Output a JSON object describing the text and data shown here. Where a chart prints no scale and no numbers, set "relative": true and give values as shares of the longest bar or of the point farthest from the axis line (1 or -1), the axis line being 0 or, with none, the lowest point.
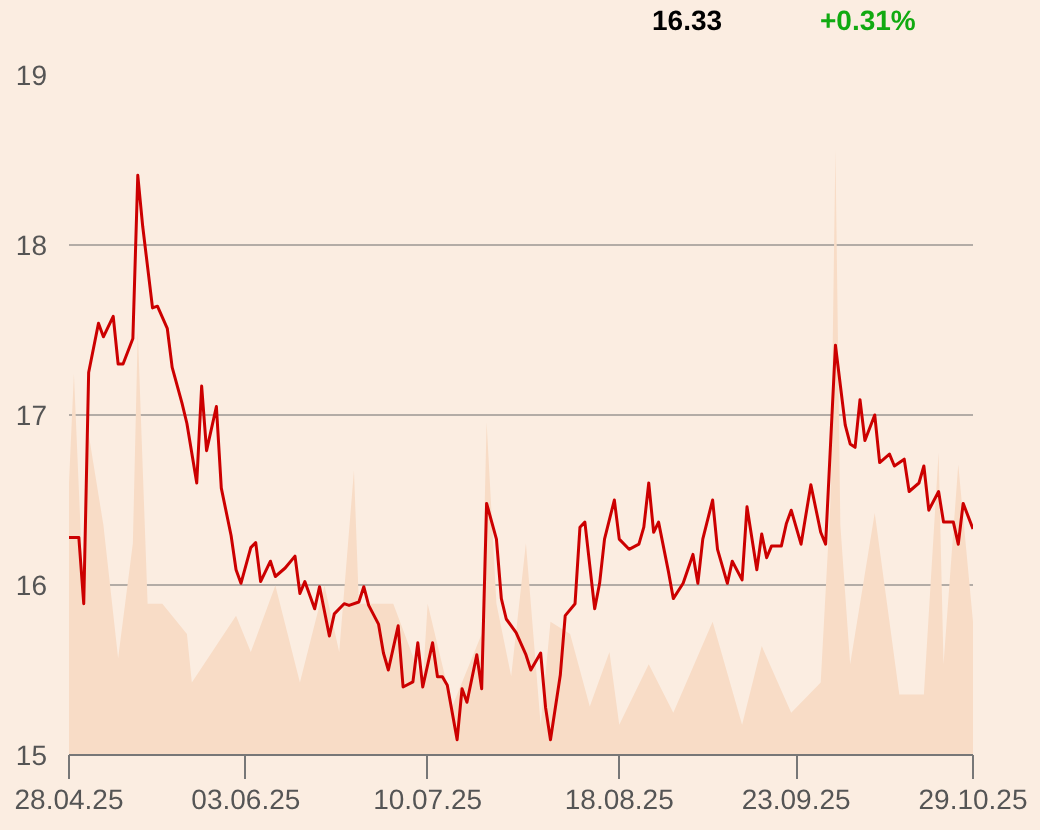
{
  "chart_data": [
    {
      "type": "line",
      "annotations": [
        "16.33",
        "+0.31%"
      ],
      "grid": "y",
      "marker": "none",
      "line_style": "solid",
      "xlim": [
        "2025-04-28",
        "2025-10-29"
      ],
      "xticks": [
        {
          "value": "2025-04-28",
          "label": "28.04.25"
        },
        {
          "value": "2025-06-03",
          "label": "03.06.25"
        },
        {
          "value": "2025-07-10",
          "label": "10.07.25"
        },
        {
          "value": "2025-08-18",
          "label": "18.08.25"
        },
        {
          "value": "2025-09-23",
          "label": "23.09.25"
        },
        {
          "value": "2025-10-29",
          "label": "29.10.25"
        }
      ],
      "ylim": [
        15,
        19
      ],
      "yticks": [
        15,
        16,
        17,
        18,
        19
      ],
      "series": [
        {
          "color": "#cc0000",
          "x": [
            "2025-04-28",
            "2025-04-30",
            "2025-05-01",
            "2025-05-02",
            "2025-05-04",
            "2025-05-05",
            "2025-05-07",
            "2025-05-08",
            "2025-05-09",
            "2025-05-11",
            "2025-05-12",
            "2025-05-13",
            "2025-05-15",
            "2025-05-16",
            "2025-05-18",
            "2025-05-19",
            "2025-05-21",
            "2025-05-22",
            "2025-05-24",
            "2025-05-25",
            "2025-05-26",
            "2025-05-28",
            "2025-05-29",
            "2025-05-31",
            "2025-06-01",
            "2025-06-02",
            "2025-06-04",
            "2025-06-05",
            "2025-06-06",
            "2025-06-08",
            "2025-06-09",
            "2025-06-11",
            "2025-06-13",
            "2025-06-14",
            "2025-06-15",
            "2025-06-17",
            "2025-06-18",
            "2025-06-20",
            "2025-06-21",
            "2025-06-23",
            "2025-06-24",
            "2025-06-26",
            "2025-06-27",
            "2025-06-28",
            "2025-06-30",
            "2025-07-01",
            "2025-07-02",
            "2025-07-04",
            "2025-07-05",
            "2025-07-07",
            "2025-07-08",
            "2025-07-09",
            "2025-07-11",
            "2025-07-12",
            "2025-07-13",
            "2025-07-14",
            "2025-07-16",
            "2025-07-17",
            "2025-07-18",
            "2025-07-20",
            "2025-07-21",
            "2025-07-22",
            "2025-07-24",
            "2025-07-25",
            "2025-07-26",
            "2025-07-28",
            "2025-07-30",
            "2025-07-31",
            "2025-08-02",
            "2025-08-03",
            "2025-08-04",
            "2025-08-06",
            "2025-08-07",
            "2025-08-09",
            "2025-08-10",
            "2025-08-11",
            "2025-08-13",
            "2025-08-14",
            "2025-08-15",
            "2025-08-17",
            "2025-08-18",
            "2025-08-20",
            "2025-08-22",
            "2025-08-23",
            "2025-08-24",
            "2025-08-25",
            "2025-08-26",
            "2025-08-28",
            "2025-08-29",
            "2025-08-31",
            "2025-09-02",
            "2025-09-03",
            "2025-09-04",
            "2025-09-06",
            "2025-09-07",
            "2025-09-09",
            "2025-09-10",
            "2025-09-12",
            "2025-09-13",
            "2025-09-15",
            "2025-09-16",
            "2025-09-17",
            "2025-09-18",
            "2025-09-20",
            "2025-09-21",
            "2025-09-22",
            "2025-09-24",
            "2025-09-26",
            "2025-09-28",
            "2025-09-29",
            "2025-10-01",
            "2025-10-03",
            "2025-10-04",
            "2025-10-05",
            "2025-10-06",
            "2025-10-07",
            "2025-10-09",
            "2025-10-10",
            "2025-10-12",
            "2025-10-13",
            "2025-10-15",
            "2025-10-16",
            "2025-10-18",
            "2025-10-19",
            "2025-10-20",
            "2025-10-22",
            "2025-10-23",
            "2025-10-25",
            "2025-10-26",
            "2025-10-27",
            "2025-10-29"
          ],
          "values": [
            16.28,
            16.28,
            15.89,
            17.25,
            17.54,
            17.46,
            17.58,
            17.3,
            17.3,
            17.45,
            18.41,
            18.11,
            17.63,
            17.64,
            17.51,
            17.28,
            17.07,
            16.95,
            16.6,
            17.17,
            16.79,
            17.05,
            16.57,
            16.29,
            16.09,
            16.01,
            16.22,
            16.25,
            16.02,
            16.14,
            16.05,
            16.1,
            16.17,
            15.95,
            16.02,
            15.86,
            15.99,
            15.7,
            15.83,
            15.89,
            15.88,
            15.9,
            15.99,
            15.88,
            15.77,
            15.6,
            15.5,
            15.76,
            15.4,
            15.43,
            15.66,
            15.4,
            15.66,
            15.46,
            15.46,
            15.41,
            15.09,
            15.39,
            15.31,
            15.59,
            15.39,
            16.48,
            16.27,
            15.92,
            15.8,
            15.72,
            15.59,
            15.5,
            15.6,
            15.28,
            15.09,
            15.47,
            15.82,
            15.89,
            16.34,
            16.37,
            15.86,
            16.01,
            16.27,
            16.5,
            16.27,
            16.21,
            16.24,
            16.34,
            16.6,
            16.31,
            16.37,
            16.08,
            15.92,
            16.01,
            16.18,
            16.01,
            16.27,
            16.5,
            16.21,
            16.01,
            16.14,
            16.03,
            16.46,
            16.09,
            16.3,
            16.16,
            16.23,
            16.23,
            16.36,
            16.44,
            16.24,
            16.59,
            16.31,
            16.24,
            17.41,
            16.94,
            16.83,
            16.81,
            17.09,
            16.85,
            17.0,
            16.72,
            16.77,
            16.7,
            16.74,
            16.55,
            16.6,
            16.7,
            16.44,
            16.55,
            16.37,
            16.37,
            16.24,
            16.48,
            16.33
          ]
        }
      ]
    },
    {
      "type": "area",
      "relative": true,
      "tick_labels": false,
      "xlim": [
        "2025-04-28",
        "2025-10-29"
      ],
      "series": [
        {
          "color": "#f8dcc6",
          "x": [
            "2025-04-28",
            "2025-04-29",
            "2025-05-01",
            "2025-05-02",
            "2025-05-05",
            "2025-05-08",
            "2025-05-11",
            "2025-05-12",
            "2025-05-14",
            "2025-05-17",
            "2025-05-22",
            "2025-05-23",
            "2025-06-01",
            "2025-06-04",
            "2025-06-09",
            "2025-06-14",
            "2025-06-19",
            "2025-06-22",
            "2025-06-25",
            "2025-06-26",
            "2025-07-03",
            "2025-07-09",
            "2025-07-10",
            "2025-07-15",
            "2025-07-21",
            "2025-07-22",
            "2025-07-24",
            "2025-07-27",
            "2025-07-30",
            "2025-08-02",
            "2025-08-04",
            "2025-08-08",
            "2025-08-12",
            "2025-08-16",
            "2025-08-18",
            "2025-08-24",
            "2025-08-29",
            "2025-09-06",
            "2025-09-12",
            "2025-09-16",
            "2025-09-22",
            "2025-09-28",
            "2025-09-30",
            "2025-10-01",
            "2025-10-02",
            "2025-10-04",
            "2025-10-09",
            "2025-10-14",
            "2025-10-19",
            "2025-10-22",
            "2025-10-23",
            "2025-10-26",
            "2025-10-29"
          ],
          "values": [
            0.45,
            0.63,
            0.25,
            0.53,
            0.38,
            0.16,
            0.35,
            0.7,
            0.25,
            0.25,
            0.2,
            0.12,
            0.23,
            0.17,
            0.28,
            0.12,
            0.28,
            0.17,
            0.47,
            0.25,
            0.25,
            0.12,
            0.25,
            0.08,
            0.2,
            0.55,
            0.25,
            0.13,
            0.35,
            0.05,
            0.22,
            0.2,
            0.08,
            0.17,
            0.05,
            0.15,
            0.07,
            0.22,
            0.05,
            0.18,
            0.07,
            0.12,
            0.42,
            1,
            0.38,
            0.15,
            0.4,
            0.1,
            0.1,
            0.5,
            0.15,
            0.48,
            0.22
          ]
        }
      ]
    }
  ]
}
